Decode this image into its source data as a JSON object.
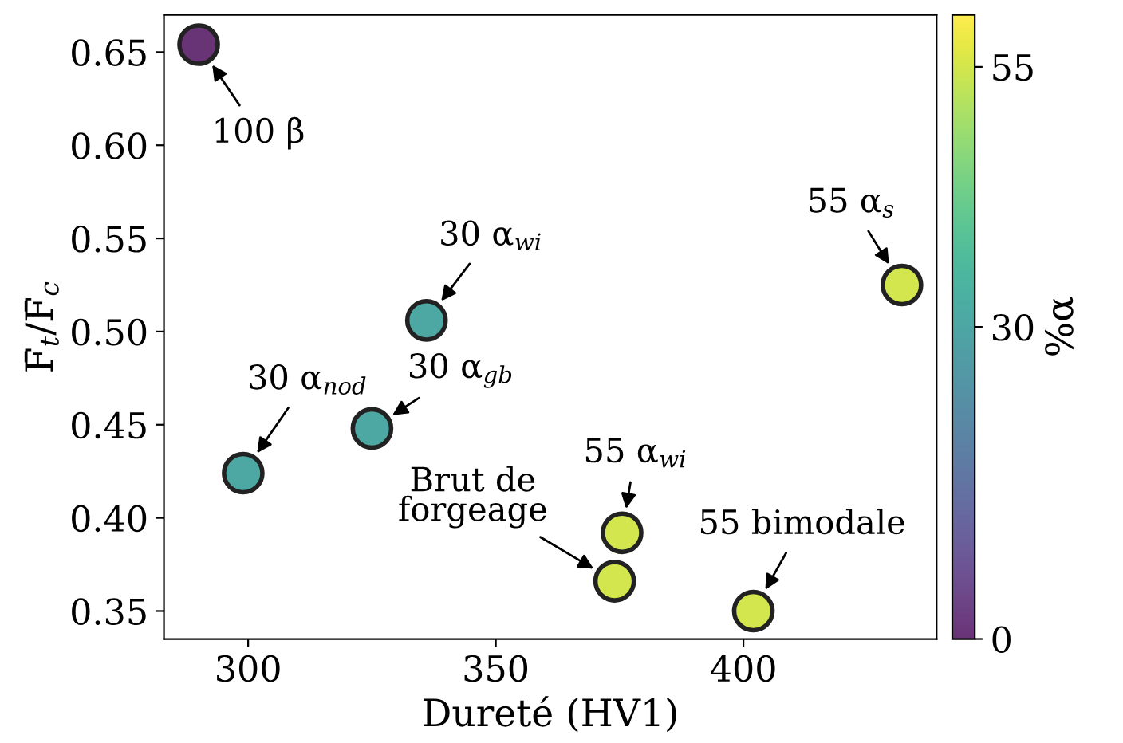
{
  "chart_data": {
    "type": "scatter",
    "xlabel": "Dureté (HV1)",
    "ylabel": "F̄$_{t}$/F̄$_{c}$",
    "clabel": "%α",
    "x": [
      290,
      336,
      299,
      325,
      432,
      375.5,
      374,
      402
    ],
    "values": [
      0.654,
      0.506,
      0.424,
      0.448,
      0.525,
      0.392,
      0.366,
      0.35
    ],
    "cvalues": [
      0,
      30,
      30,
      30,
      55,
      55,
      55,
      55
    ],
    "clim": [
      0,
      60
    ],
    "cticks": [
      0,
      30,
      55
    ],
    "xlim": [
      283,
      439
    ],
    "xticks": [
      300,
      350,
      400
    ],
    "ylim": [
      0.335,
      0.67
    ],
    "yticks": [
      0.35,
      {
        "value": 0.4,
        "label": "0.40"
      },
      0.45,
      {
        "value": 0.5,
        "label": "0.50"
      },
      0.55,
      {
        "value": 0.6,
        "label": "0.60"
      },
      0.65
    ],
    "marker": "circle",
    "grid": false,
    "annotations": [
      {
        "text": "100 β",
        "x": 290,
        "y": 0.654
      },
      {
        "text": "30 α$_{wi}$",
        "x": 336,
        "y": 0.506
      },
      {
        "text": "30 α$_{nod}$",
        "x": 299,
        "y": 0.424
      },
      {
        "text": "30 α$_{gb}$",
        "x": 325,
        "y": 0.448
      },
      {
        "text": "55 α$_{s}$",
        "x": 432,
        "y": 0.525
      },
      {
        "text": "55 α$_{wi}$",
        "x": 375.5,
        "y": 0.392
      },
      {
        "text": "Brut de\nforgeage",
        "x": 374,
        "y": 0.366
      },
      {
        "text": "55 bimodale",
        "x": 402,
        "y": 0.35
      }
    ]
  }
}
